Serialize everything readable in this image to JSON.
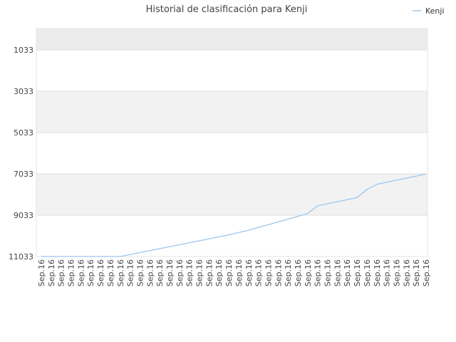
{
  "chart_data": {
    "type": "line",
    "title": "Historial de clasificación para Kenji",
    "xlabel": "",
    "ylabel": "",
    "y_reversed": true,
    "ylim": [
      11033,
      0
    ],
    "yticks": [
      1033,
      3033,
      5033,
      7033,
      9033,
      11033
    ],
    "grid": true,
    "legend_position": "top-right",
    "categories": [
      "Sep.16",
      "Sep.16",
      "Sep.16",
      "Sep.16",
      "Sep.16",
      "Sep.16",
      "Sep.16",
      "Sep.16",
      "Sep.16",
      "Sep.16",
      "Sep.16",
      "Sep.16",
      "Sep.16",
      "Sep.16",
      "Sep.16",
      "Sep.16",
      "Sep.16",
      "Sep.16",
      "Sep.16",
      "Sep.16",
      "Sep.16",
      "Sep.16",
      "Sep.16",
      "Sep.16",
      "Sep.16",
      "Sep.16",
      "Sep.16",
      "Sep.16",
      "Sep.16",
      "Sep.16",
      "Sep.16",
      "Sep.16",
      "Sep.16",
      "Sep.16",
      "Sep.16",
      "Sep.16",
      "Sep.16",
      "Sep.16",
      "Sep.16",
      "Sep.16"
    ],
    "series": [
      {
        "name": "Kenji",
        "color": "#9ec6ec",
        "values": [
          11033,
          11033,
          11033,
          11033,
          11033,
          11033,
          11033,
          11033,
          11033,
          10938,
          10843,
          10748,
          10653,
          10558,
          10463,
          10368,
          10273,
          10178,
          10083,
          9988,
          9876,
          9765,
          9630,
          9495,
          9360,
          9225,
          9090,
          8955,
          8580,
          8480,
          8380,
          8280,
          8180,
          7790,
          7540,
          7440,
          7340,
          7240,
          7140,
          7033
        ]
      }
    ],
    "colors": {
      "band": "#f2f2f2",
      "top_band": "#ececec",
      "grid": "#dddddd",
      "axis": "#cccccc"
    }
  }
}
